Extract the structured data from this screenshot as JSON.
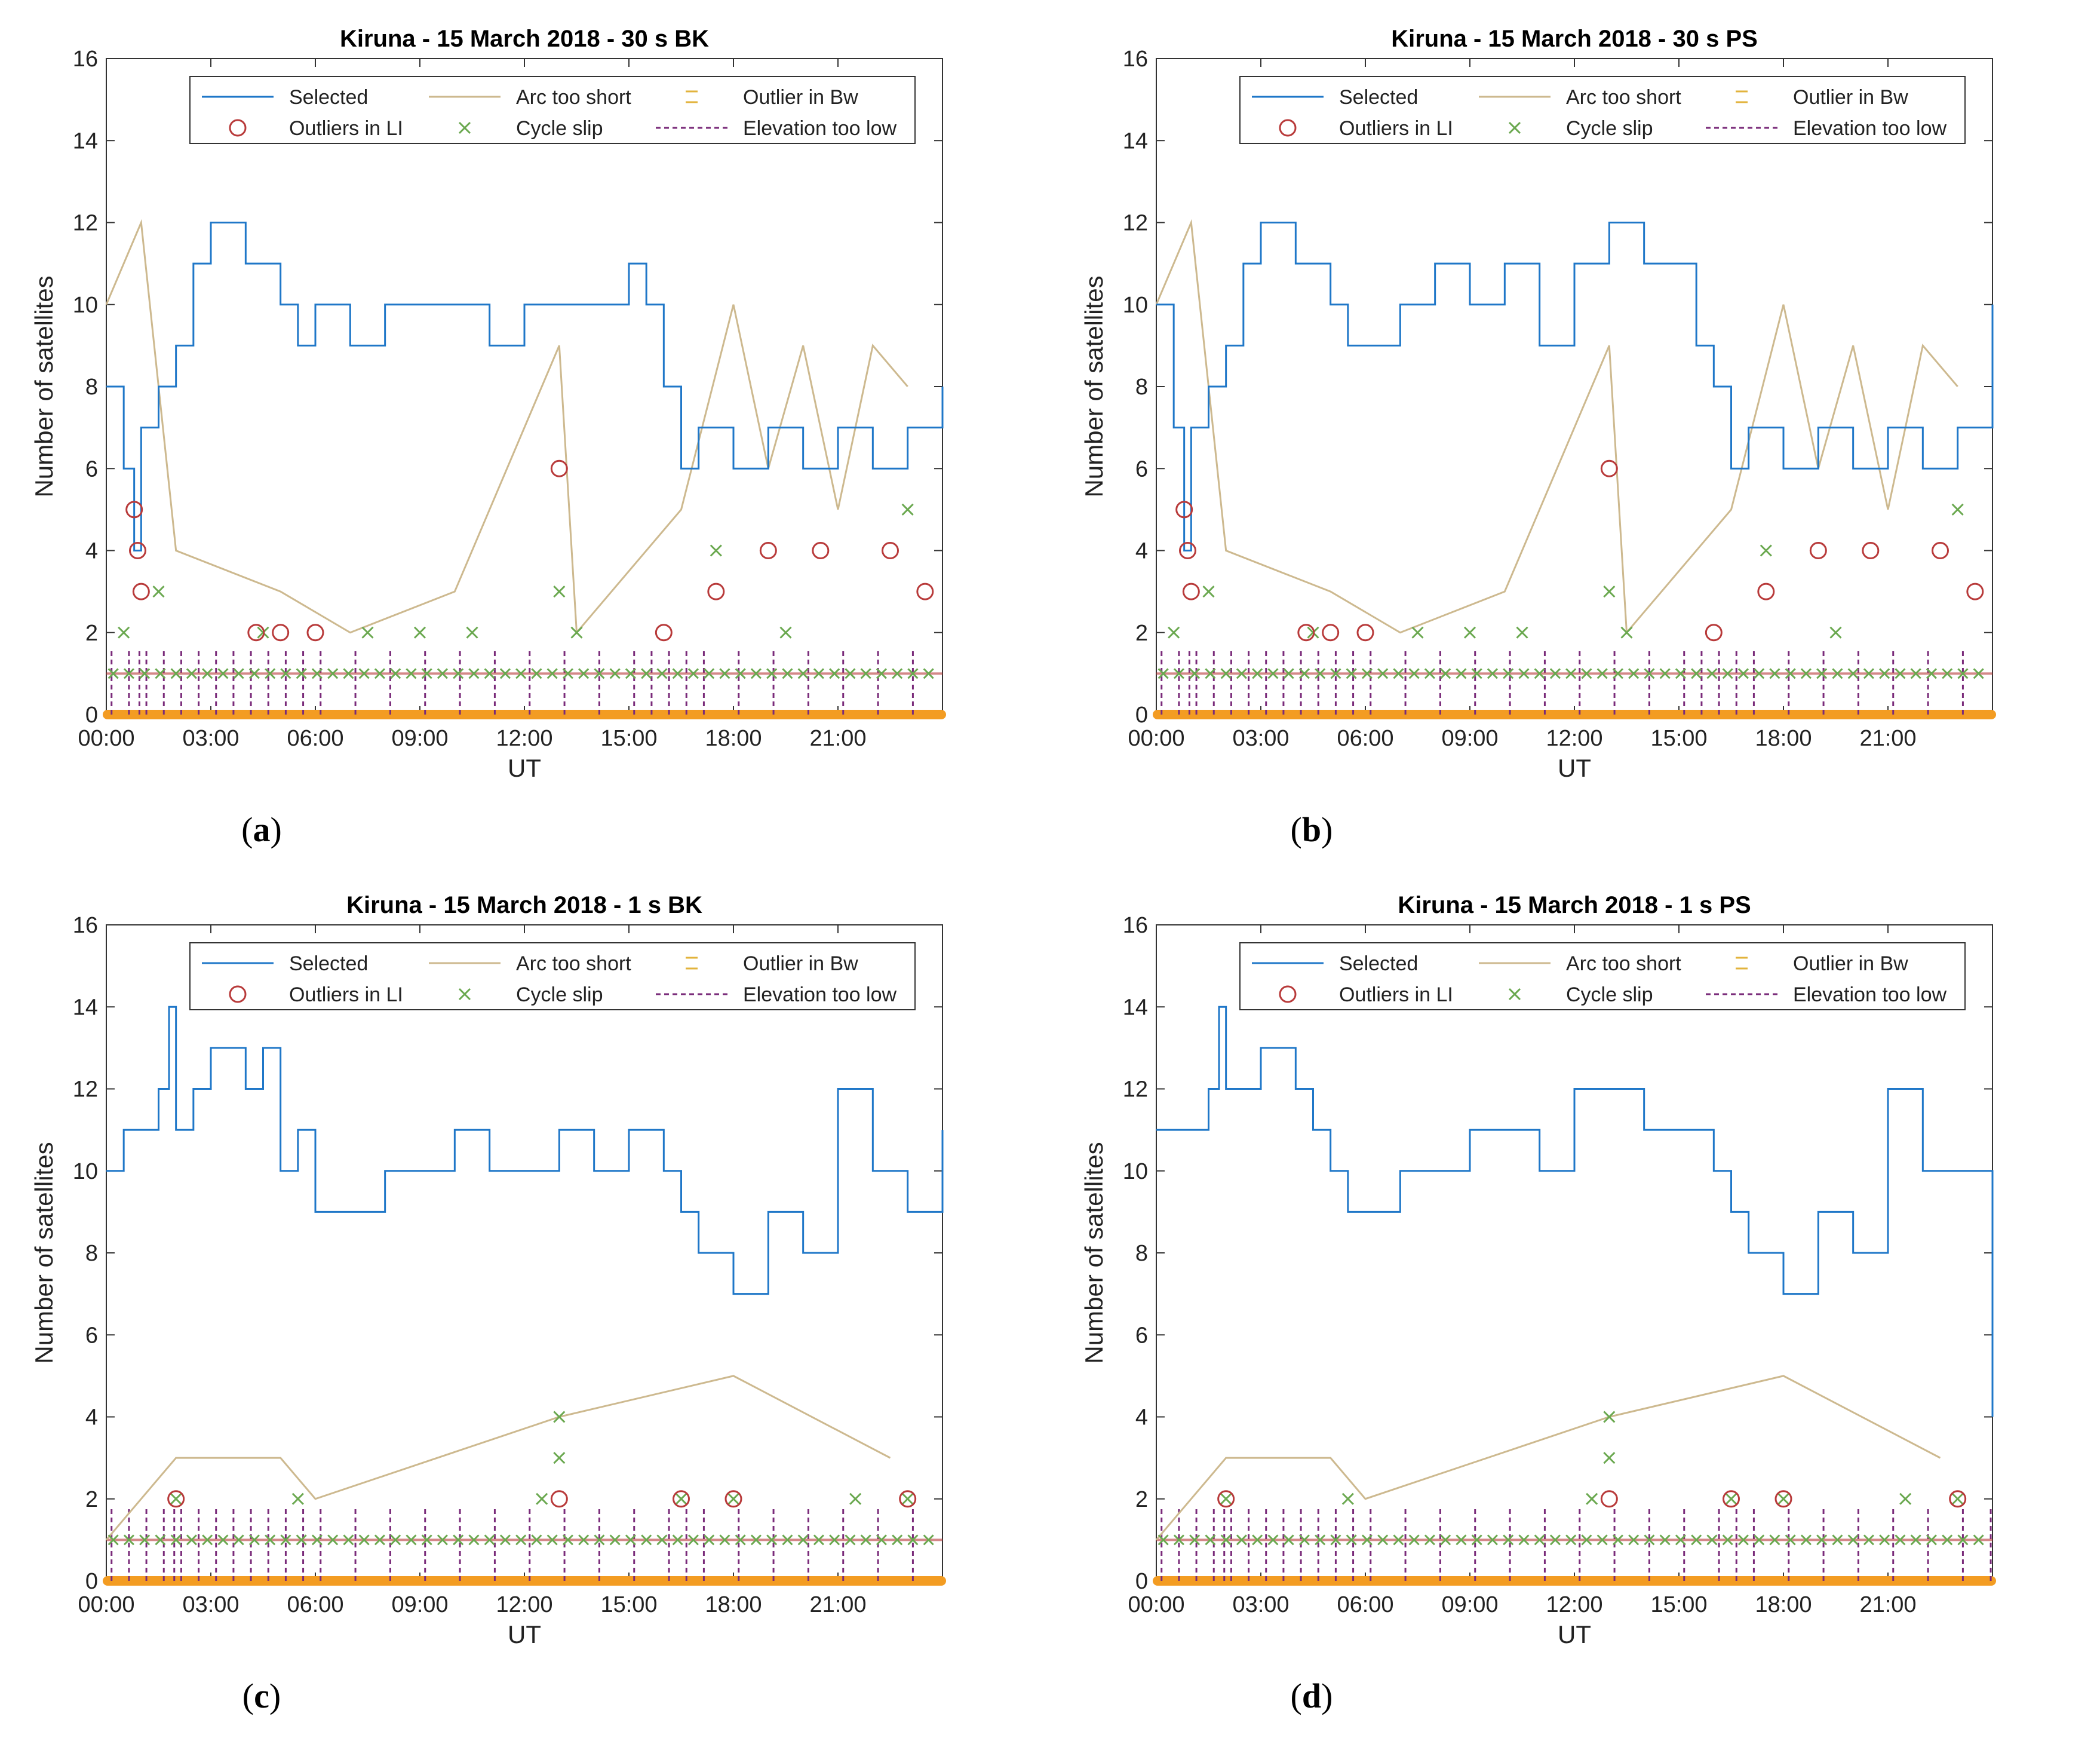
{
  "colors": {
    "selected": "#1f77c8",
    "arc_too_short": "#cdb98f",
    "outlier_bw": "#e2b33c",
    "outliers_li": "#b83a3a",
    "cycle_slip": "#6aa84f",
    "elevation_too_low": "#7a2b7a",
    "zero_band": "#f39c22"
  },
  "chart_data": [
    {
      "id": "a",
      "type": "line",
      "title": "Kiruna - 15 March 2018 - 30 s BK",
      "xlabel": "UT",
      "ylabel": "Number of satellites",
      "caption": "a",
      "xlim": [
        0,
        24
      ],
      "ylim": [
        0,
        16
      ],
      "yticks": [
        "0",
        "2",
        "4",
        "6",
        "8",
        "10",
        "12",
        "14",
        "16"
      ],
      "xticks": [
        "00:00",
        "03:00",
        "06:00",
        "09:00",
        "12:00",
        "15:00",
        "18:00",
        "21:00"
      ],
      "legend": [
        "Selected",
        "Arc too short",
        "Outlier in Bw",
        "Outliers in LI",
        "Cycle slip",
        "Elevation too low"
      ],
      "selected": [
        [
          0,
          8
        ],
        [
          0.5,
          6
        ],
        [
          0.8,
          4
        ],
        [
          1.0,
          7
        ],
        [
          1.5,
          8
        ],
        [
          2.0,
          9
        ],
        [
          2.5,
          11
        ],
        [
          3.0,
          12
        ],
        [
          3.5,
          12
        ],
        [
          4.0,
          11
        ],
        [
          4.5,
          11
        ],
        [
          5.0,
          10
        ],
        [
          5.5,
          9
        ],
        [
          6.0,
          10
        ],
        [
          7.0,
          9
        ],
        [
          8.0,
          10
        ],
        [
          9.0,
          10
        ],
        [
          10.0,
          10
        ],
        [
          11.0,
          9
        ],
        [
          12.0,
          10
        ],
        [
          13.0,
          10
        ],
        [
          14.0,
          10
        ],
        [
          15.0,
          11
        ],
        [
          15.5,
          10
        ],
        [
          16.0,
          8
        ],
        [
          16.5,
          6
        ],
        [
          17.0,
          7
        ],
        [
          18.0,
          6
        ],
        [
          19.0,
          7
        ],
        [
          20.0,
          6
        ],
        [
          21.0,
          7
        ],
        [
          22.0,
          6
        ],
        [
          23.0,
          7
        ],
        [
          24,
          8
        ]
      ],
      "arc_too_short": [
        [
          0,
          10
        ],
        [
          1.0,
          12
        ],
        [
          1.5,
          8
        ],
        [
          2.0,
          4
        ],
        [
          5.0,
          3
        ],
        [
          7.0,
          2
        ],
        [
          10.0,
          3
        ],
        [
          13.0,
          9
        ],
        [
          13.5,
          2
        ],
        [
          16.5,
          5
        ],
        [
          18.0,
          10
        ],
        [
          19.0,
          6
        ],
        [
          20.0,
          9
        ],
        [
          21.0,
          5
        ],
        [
          22.0,
          9
        ],
        [
          23.0,
          8
        ]
      ],
      "outliers_li": [
        [
          0.8,
          5
        ],
        [
          0.9,
          4
        ],
        [
          1.0,
          3
        ],
        [
          4.3,
          2
        ],
        [
          5.0,
          2
        ],
        [
          6.0,
          2
        ],
        [
          13.0,
          6
        ],
        [
          16.0,
          2
        ],
        [
          17.5,
          3
        ],
        [
          19.0,
          4
        ],
        [
          20.5,
          4
        ],
        [
          22.5,
          4
        ],
        [
          23.5,
          3
        ]
      ],
      "cycle_slip": [
        [
          0.5,
          2
        ],
        [
          1.5,
          3
        ],
        [
          4.5,
          2
        ],
        [
          7.5,
          2
        ],
        [
          9.0,
          2
        ],
        [
          10.5,
          2
        ],
        [
          13.0,
          3
        ],
        [
          13.5,
          2
        ],
        [
          17.5,
          4
        ],
        [
          19.5,
          2
        ],
        [
          23.0,
          5
        ]
      ]
    },
    {
      "id": "b",
      "type": "line",
      "title": "Kiruna - 15 March 2018 - 30 s PS",
      "xlabel": "UT",
      "ylabel": "Number of satellites",
      "caption": "b",
      "xlim": [
        0,
        24
      ],
      "ylim": [
        0,
        16
      ],
      "yticks": [
        "0",
        "2",
        "4",
        "6",
        "8",
        "10",
        "12",
        "14",
        "16"
      ],
      "xticks": [
        "00:00",
        "03:00",
        "06:00",
        "09:00",
        "12:00",
        "15:00",
        "18:00",
        "21:00"
      ],
      "legend": [
        "Selected",
        "Arc too short",
        "Outlier in Bw",
        "Outliers in LI",
        "Cycle slip",
        "Elevation too low"
      ],
      "selected": [
        [
          0,
          10
        ],
        [
          0.5,
          7
        ],
        [
          0.8,
          4
        ],
        [
          1.0,
          7
        ],
        [
          1.5,
          8
        ],
        [
          2.0,
          9
        ],
        [
          2.5,
          11
        ],
        [
          3.0,
          12
        ],
        [
          3.5,
          12
        ],
        [
          4.0,
          11
        ],
        [
          4.5,
          11
        ],
        [
          5.0,
          10
        ],
        [
          5.5,
          9
        ],
        [
          6.0,
          9
        ],
        [
          7.0,
          10
        ],
        [
          8.0,
          11
        ],
        [
          9.0,
          10
        ],
        [
          10.0,
          11
        ],
        [
          11.0,
          9
        ],
        [
          12.0,
          11
        ],
        [
          13.0,
          12
        ],
        [
          14.0,
          11
        ],
        [
          15.0,
          11
        ],
        [
          15.5,
          9
        ],
        [
          16.0,
          8
        ],
        [
          16.5,
          6
        ],
        [
          17.0,
          7
        ],
        [
          18.0,
          6
        ],
        [
          19.0,
          7
        ],
        [
          20.0,
          6
        ],
        [
          21.0,
          7
        ],
        [
          22.0,
          6
        ],
        [
          23.0,
          7
        ],
        [
          24,
          10
        ]
      ],
      "arc_too_short": [
        [
          0,
          10
        ],
        [
          1.0,
          12
        ],
        [
          1.5,
          8
        ],
        [
          2.0,
          4
        ],
        [
          5.0,
          3
        ],
        [
          7.0,
          2
        ],
        [
          10.0,
          3
        ],
        [
          13.0,
          9
        ],
        [
          13.5,
          2
        ],
        [
          16.5,
          5
        ],
        [
          18.0,
          10
        ],
        [
          19.0,
          6
        ],
        [
          20.0,
          9
        ],
        [
          21.0,
          5
        ],
        [
          22.0,
          9
        ],
        [
          23.0,
          8
        ]
      ],
      "outliers_li": [
        [
          0.8,
          5
        ],
        [
          0.9,
          4
        ],
        [
          1.0,
          3
        ],
        [
          4.3,
          2
        ],
        [
          5.0,
          2
        ],
        [
          6.0,
          2
        ],
        [
          13.0,
          6
        ],
        [
          16.0,
          2
        ],
        [
          17.5,
          3
        ],
        [
          19.0,
          4
        ],
        [
          20.5,
          4
        ],
        [
          22.5,
          4
        ],
        [
          23.5,
          3
        ]
      ],
      "cycle_slip": [
        [
          0.5,
          2
        ],
        [
          1.5,
          3
        ],
        [
          4.5,
          2
        ],
        [
          7.5,
          2
        ],
        [
          9.0,
          2
        ],
        [
          10.5,
          2
        ],
        [
          13.0,
          3
        ],
        [
          13.5,
          2
        ],
        [
          17.5,
          4
        ],
        [
          19.5,
          2
        ],
        [
          23.0,
          5
        ]
      ]
    },
    {
      "id": "c",
      "type": "line",
      "title": "Kiruna - 15 March 2018 - 1 s BK",
      "xlabel": "UT",
      "ylabel": "Number of satellites",
      "caption": "c",
      "xlim": [
        0,
        24
      ],
      "ylim": [
        0,
        16
      ],
      "yticks": [
        "0",
        "2",
        "4",
        "6",
        "8",
        "10",
        "12",
        "14",
        "16"
      ],
      "xticks": [
        "00:00",
        "03:00",
        "06:00",
        "09:00",
        "12:00",
        "15:00",
        "18:00",
        "21:00"
      ],
      "legend": [
        "Selected",
        "Arc too short",
        "Outlier in Bw",
        "Outliers in LI",
        "Cycle slip",
        "Elevation too low"
      ],
      "selected": [
        [
          0,
          10
        ],
        [
          0.5,
          11
        ],
        [
          1.0,
          11
        ],
        [
          1.5,
          12
        ],
        [
          1.8,
          14
        ],
        [
          2.0,
          11
        ],
        [
          2.5,
          12
        ],
        [
          3.0,
          13
        ],
        [
          3.5,
          13
        ],
        [
          4.0,
          12
        ],
        [
          4.5,
          13
        ],
        [
          5.0,
          10
        ],
        [
          5.5,
          11
        ],
        [
          6.0,
          9
        ],
        [
          7.0,
          9
        ],
        [
          8.0,
          10
        ],
        [
          9.0,
          10
        ],
        [
          10.0,
          11
        ],
        [
          11.0,
          10
        ],
        [
          12.0,
          10
        ],
        [
          13.0,
          11
        ],
        [
          14.0,
          10
        ],
        [
          15.0,
          11
        ],
        [
          16.0,
          10
        ],
        [
          16.5,
          9
        ],
        [
          17.0,
          8
        ],
        [
          18.0,
          7
        ],
        [
          19.0,
          9
        ],
        [
          20.0,
          8
        ],
        [
          21.0,
          12
        ],
        [
          22.0,
          10
        ],
        [
          23.0,
          9
        ],
        [
          24,
          11
        ]
      ],
      "arc_too_short": [
        [
          0,
          1
        ],
        [
          2.0,
          3
        ],
        [
          5.0,
          3
        ],
        [
          6.0,
          2
        ],
        [
          13.0,
          4
        ],
        [
          18.0,
          5
        ],
        [
          22.5,
          3
        ]
      ],
      "outliers_li": [
        [
          2.0,
          2
        ],
        [
          13.0,
          2
        ],
        [
          16.5,
          2
        ],
        [
          18.0,
          2
        ],
        [
          23.0,
          2
        ]
      ],
      "cycle_slip": [
        [
          2.0,
          2
        ],
        [
          5.5,
          2
        ],
        [
          12.5,
          2
        ],
        [
          13.0,
          4
        ],
        [
          13.0,
          3
        ],
        [
          16.5,
          2
        ],
        [
          18.0,
          2
        ],
        [
          21.5,
          2
        ],
        [
          23.0,
          2
        ]
      ]
    },
    {
      "id": "d",
      "type": "line",
      "title": "Kiruna - 15 March 2018 - 1 s PS",
      "xlabel": "UT",
      "ylabel": "Number of satellites",
      "caption": "d",
      "xlim": [
        0,
        24
      ],
      "ylim": [
        0,
        16
      ],
      "yticks": [
        "0",
        "2",
        "4",
        "6",
        "8",
        "10",
        "12",
        "14",
        "16"
      ],
      "xticks": [
        "00:00",
        "03:00",
        "06:00",
        "09:00",
        "12:00",
        "15:00",
        "18:00",
        "21:00"
      ],
      "legend": [
        "Selected",
        "Arc too short",
        "Outlier in Bw",
        "Outliers in LI",
        "Cycle slip",
        "Elevation too low"
      ],
      "selected": [
        [
          0,
          11
        ],
        [
          0.5,
          11
        ],
        [
          1.0,
          11
        ],
        [
          1.5,
          12
        ],
        [
          1.8,
          14
        ],
        [
          2.0,
          12
        ],
        [
          2.5,
          12
        ],
        [
          3.0,
          13
        ],
        [
          3.5,
          13
        ],
        [
          4.0,
          12
        ],
        [
          4.5,
          11
        ],
        [
          5.0,
          10
        ],
        [
          5.5,
          9
        ],
        [
          6.0,
          9
        ],
        [
          7.0,
          10
        ],
        [
          8.0,
          10
        ],
        [
          9.0,
          11
        ],
        [
          10.0,
          11
        ],
        [
          11.0,
          10
        ],
        [
          12.0,
          12
        ],
        [
          13.0,
          12
        ],
        [
          14.0,
          11
        ],
        [
          15.0,
          11
        ],
        [
          16.0,
          10
        ],
        [
          16.5,
          9
        ],
        [
          17.0,
          8
        ],
        [
          18.0,
          7
        ],
        [
          19.0,
          9
        ],
        [
          20.0,
          8
        ],
        [
          21.0,
          12
        ],
        [
          22.0,
          10
        ],
        [
          23.0,
          10
        ],
        [
          23.8,
          10
        ],
        [
          24,
          4
        ]
      ],
      "arc_too_short": [
        [
          0,
          1
        ],
        [
          2.0,
          3
        ],
        [
          5.0,
          3
        ],
        [
          6.0,
          2
        ],
        [
          13.0,
          4
        ],
        [
          18.0,
          5
        ],
        [
          22.5,
          3
        ]
      ],
      "outliers_li": [
        [
          2.0,
          2
        ],
        [
          13.0,
          2
        ],
        [
          16.5,
          2
        ],
        [
          18.0,
          2
        ],
        [
          23.0,
          2
        ]
      ],
      "cycle_slip": [
        [
          2.0,
          2
        ],
        [
          5.5,
          2
        ],
        [
          12.5,
          2
        ],
        [
          13.0,
          4
        ],
        [
          13.0,
          3
        ],
        [
          16.5,
          2
        ],
        [
          18.0,
          2
        ],
        [
          21.5,
          2
        ],
        [
          23.0,
          2
        ]
      ]
    }
  ]
}
